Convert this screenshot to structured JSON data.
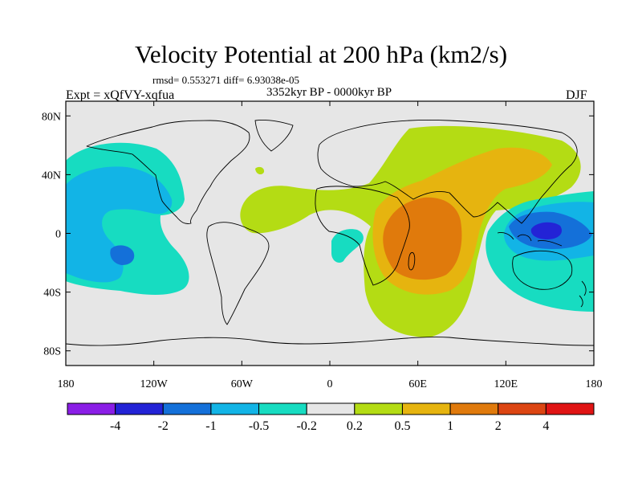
{
  "title": "Velocity Potential at 200 hPa (km2/s)",
  "stats": "rmsd= 0.553271 diff= 6.93038e-05",
  "experiment": "Expt = xQfVY-xqfua",
  "period": "3352kyr BP - 0000kyr BP",
  "season": "DJF",
  "map": {
    "lon_range": [
      -180,
      180
    ],
    "lat_range": [
      -90,
      90
    ],
    "y_tick_labels": [
      {
        "lat": 80,
        "label": "80N"
      },
      {
        "lat": 40,
        "label": "40N"
      },
      {
        "lat": 0,
        "label": "0"
      },
      {
        "lat": -40,
        "label": "40S"
      },
      {
        "lat": -80,
        "label": "80S"
      }
    ],
    "x_tick_labels": [
      {
        "lon": -180,
        "label": "180"
      },
      {
        "lon": -120,
        "label": "120W"
      },
      {
        "lon": -60,
        "label": "60W"
      },
      {
        "lon": 0,
        "label": "0"
      },
      {
        "lon": 60,
        "label": "60E"
      },
      {
        "lon": 120,
        "label": "120E"
      },
      {
        "lon": 180,
        "label": "180"
      }
    ]
  },
  "colorbar": {
    "colors": [
      "#8a1ee6",
      "#2323d6",
      "#1470d9",
      "#12b4e6",
      "#17dcc1",
      "#e6e6e6",
      "#b4dc14",
      "#e6b40f",
      "#e07a0c",
      "#dc4512",
      "#e01414"
    ],
    "labels": [
      "-4",
      "-2",
      "-1",
      "-0.5",
      "-0.2",
      "0.2",
      "0.5",
      "1",
      "2",
      "4"
    ]
  }
}
